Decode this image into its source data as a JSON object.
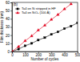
{
  "chart_data": {
    "type": "line",
    "annotation": "(b)",
    "x_label": "Number of cycles",
    "y_label": "Film thickness (nm)",
    "xlim": [
      0,
      500
    ],
    "xticks": [
      0,
      100,
      200,
      300,
      400,
      500
    ],
    "ylim": [
      0,
      60
    ],
    "yticks": [
      0,
      10,
      20,
      30,
      40,
      50,
      60
    ],
    "legend": "upper left",
    "series": [
      {
        "name": "Ta4 on Si stripped in HF",
        "color": "#000000",
        "marker": "square",
        "line_style": "solid",
        "x": [
          0,
          50,
          100,
          150,
          200,
          250,
          300,
          350,
          400,
          450,
          500
        ],
        "values": [
          0,
          3,
          7,
          10,
          14,
          17,
          21,
          24,
          28,
          31,
          35
        ]
      },
      {
        "name": "Ta4 on SiO₂ (100 Å)",
        "color": "#e0001b",
        "marker": "triangle",
        "line_style": "solid",
        "x": [
          0,
          50,
          100,
          150,
          200,
          250,
          300,
          350,
          400,
          450
        ],
        "values": [
          0,
          6,
          13,
          19,
          26,
          32,
          39,
          45,
          52,
          58
        ]
      }
    ]
  }
}
